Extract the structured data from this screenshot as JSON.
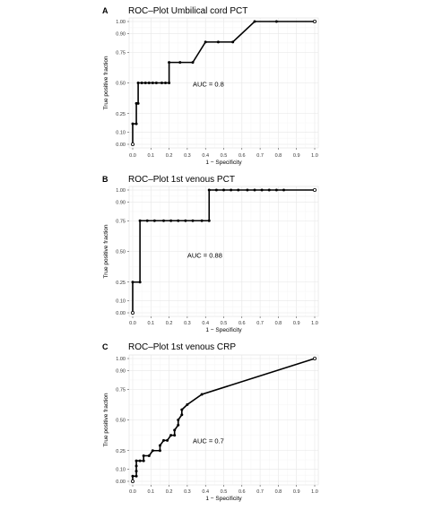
{
  "chart_data": [
    {
      "type": "line",
      "panel": "A",
      "title": "ROC–Plot Umbilical cord PCT",
      "xlabel": "1 − Specificity",
      "ylabel": "True positive fraction",
      "auc_label": "AUC = 0.8",
      "xlim": [
        0,
        1
      ],
      "ylim": [
        0,
        1
      ],
      "grid": true,
      "x_ticks": [
        "0.0",
        "0.1",
        "0.2",
        "0.3",
        "0.4",
        "0.5",
        "0.6",
        "0.7",
        "0.8",
        "0.9",
        "1.0"
      ],
      "y_ticks": [
        "0.00",
        "0.10",
        "0.25",
        "0.50",
        "0.75",
        "0.90",
        "1.00"
      ],
      "y_tick_values": [
        0,
        0.1,
        0.25,
        0.5,
        0.75,
        0.9,
        1.0
      ],
      "points": [
        [
          0.0,
          0.0
        ],
        [
          0.0,
          0.167
        ],
        [
          0.02,
          0.167
        ],
        [
          0.02,
          0.333
        ],
        [
          0.03,
          0.333
        ],
        [
          0.03,
          0.5
        ],
        [
          0.05,
          0.5
        ],
        [
          0.07,
          0.5
        ],
        [
          0.09,
          0.5
        ],
        [
          0.11,
          0.5
        ],
        [
          0.13,
          0.5
        ],
        [
          0.16,
          0.5
        ],
        [
          0.18,
          0.5
        ],
        [
          0.2,
          0.5
        ],
        [
          0.2,
          0.667
        ],
        [
          0.26,
          0.667
        ],
        [
          0.33,
          0.667
        ],
        [
          0.4,
          0.833
        ],
        [
          0.47,
          0.833
        ],
        [
          0.55,
          0.833
        ],
        [
          0.67,
          1.0
        ],
        [
          0.79,
          1.0
        ],
        [
          1.0,
          1.0
        ]
      ]
    },
    {
      "type": "line",
      "panel": "B",
      "title": "ROC–Plot 1st venous PCT",
      "xlabel": "1 − Specificity",
      "ylabel": "True positive fraction",
      "auc_label": "AUC = 0.88",
      "xlim": [
        0,
        1
      ],
      "ylim": [
        0,
        1
      ],
      "grid": true,
      "x_ticks": [
        "0.0",
        "0.1",
        "0.2",
        "0.3",
        "0.4",
        "0.5",
        "0.6",
        "0.7",
        "0.8",
        "0.9",
        "1.0"
      ],
      "y_ticks": [
        "0.00",
        "0.10",
        "0.25",
        "0.50",
        "0.75",
        "0.90",
        "1.00"
      ],
      "y_tick_values": [
        0,
        0.1,
        0.25,
        0.5,
        0.75,
        0.9,
        1.0
      ],
      "points": [
        [
          0.0,
          0.0
        ],
        [
          0.0,
          0.25
        ],
        [
          0.04,
          0.25
        ],
        [
          0.04,
          0.75
        ],
        [
          0.08,
          0.75
        ],
        [
          0.12,
          0.75
        ],
        [
          0.17,
          0.75
        ],
        [
          0.21,
          0.75
        ],
        [
          0.25,
          0.75
        ],
        [
          0.29,
          0.75
        ],
        [
          0.33,
          0.75
        ],
        [
          0.38,
          0.75
        ],
        [
          0.42,
          0.75
        ],
        [
          0.42,
          1.0
        ],
        [
          0.46,
          1.0
        ],
        [
          0.5,
          1.0
        ],
        [
          0.54,
          1.0
        ],
        [
          0.58,
          1.0
        ],
        [
          0.63,
          1.0
        ],
        [
          0.67,
          1.0
        ],
        [
          0.71,
          1.0
        ],
        [
          0.75,
          1.0
        ],
        [
          0.79,
          1.0
        ],
        [
          0.83,
          1.0
        ],
        [
          1.0,
          1.0
        ]
      ]
    },
    {
      "type": "line",
      "panel": "C",
      "title": "ROC–Plot 1st venous CRP",
      "xlabel": "1 − Specificity",
      "ylabel": "True positive fraction",
      "auc_label": "AUC = 0.7",
      "xlim": [
        0,
        1
      ],
      "ylim": [
        0,
        1
      ],
      "grid": true,
      "x_ticks": [
        "0.0",
        "0.1",
        "0.2",
        "0.3",
        "0.4",
        "0.5",
        "0.6",
        "0.7",
        "0.8",
        "0.9",
        "1.0"
      ],
      "y_ticks": [
        "0.00",
        "0.10",
        "0.25",
        "0.50",
        "0.75",
        "0.90",
        "1.00"
      ],
      "y_tick_values": [
        0,
        0.1,
        0.25,
        0.5,
        0.75,
        0.9,
        1.0
      ],
      "points": [
        [
          0.0,
          0.0
        ],
        [
          0.0,
          0.042
        ],
        [
          0.02,
          0.042
        ],
        [
          0.02,
          0.083
        ],
        [
          0.02,
          0.125
        ],
        [
          0.02,
          0.167
        ],
        [
          0.04,
          0.167
        ],
        [
          0.06,
          0.167
        ],
        [
          0.06,
          0.208
        ],
        [
          0.09,
          0.208
        ],
        [
          0.11,
          0.25
        ],
        [
          0.15,
          0.25
        ],
        [
          0.15,
          0.292
        ],
        [
          0.17,
          0.333
        ],
        [
          0.19,
          0.333
        ],
        [
          0.21,
          0.375
        ],
        [
          0.23,
          0.375
        ],
        [
          0.23,
          0.417
        ],
        [
          0.25,
          0.458
        ],
        [
          0.25,
          0.5
        ],
        [
          0.27,
          0.542
        ],
        [
          0.27,
          0.583
        ],
        [
          0.3,
          0.625
        ],
        [
          0.38,
          0.708
        ],
        [
          1.0,
          1.0
        ]
      ]
    }
  ]
}
